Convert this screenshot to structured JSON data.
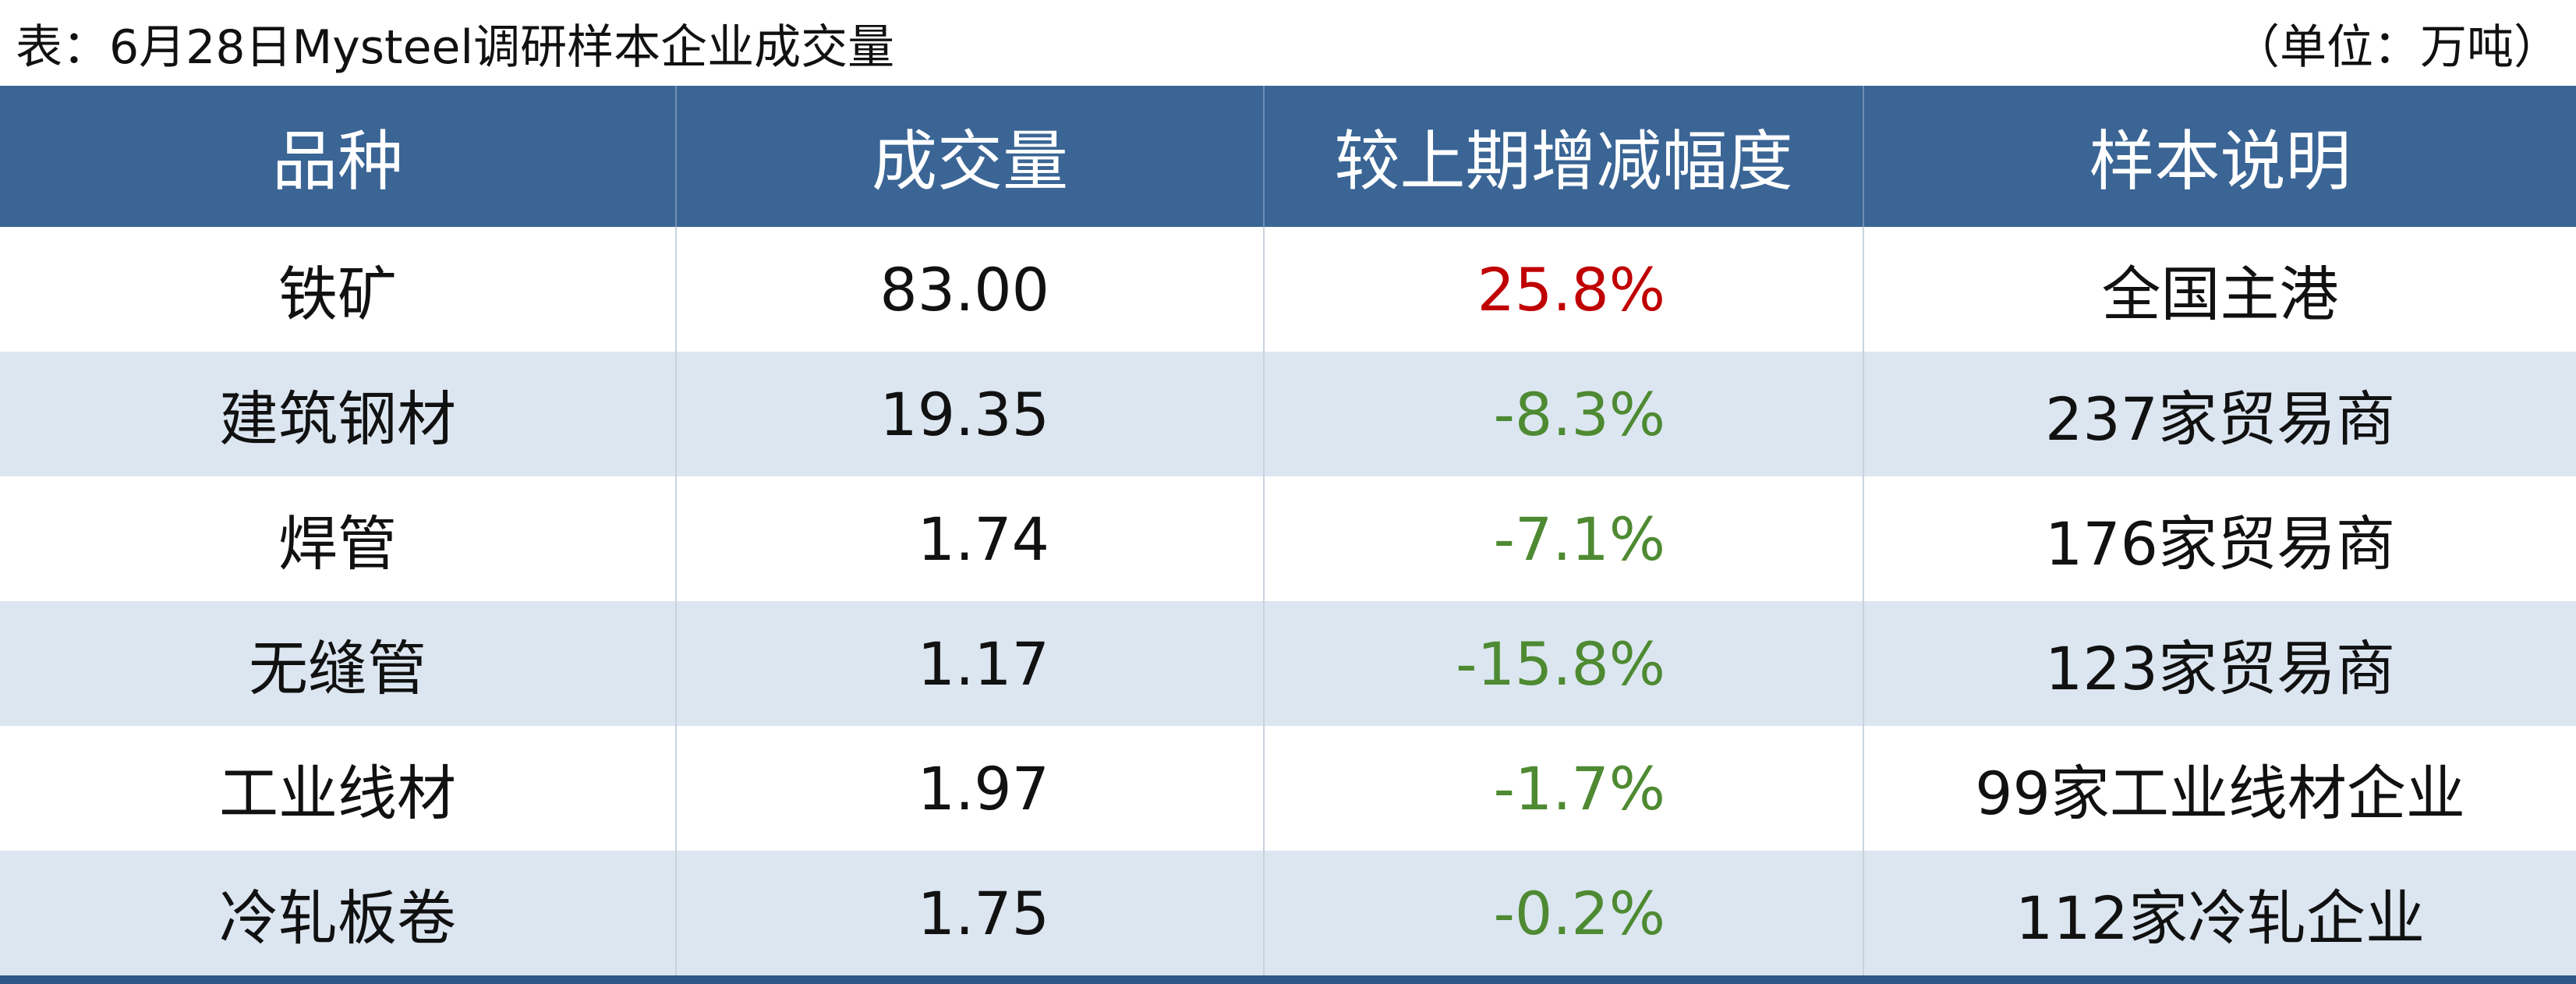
{
  "title": "表：6月28日Mysteel调研样本企业成交量",
  "unit": "（单位：万吨）",
  "table": {
    "header": [
      "品种",
      "成交量",
      "较上期增减幅度",
      "样本说明"
    ],
    "rows": [
      [
        "铁矿",
        "83.00",
        "25.8%",
        "全国主港"
      ],
      [
        "建筑钢材",
        "19.35",
        "-8.3%",
        "237家贸易商"
      ],
      [
        "焊管",
        "1.74",
        "-7.1%",
        "176家贸易商"
      ],
      [
        "无缝管",
        "1.17",
        "-15.8%",
        "123家贸易商"
      ],
      [
        "工业线材",
        "1.97",
        "-1.7%",
        "99家工业线材企业"
      ],
      [
        "冷轧板卷",
        "1.75",
        "-0.2%",
        "112家冷轧企业"
      ]
    ]
  }
}
